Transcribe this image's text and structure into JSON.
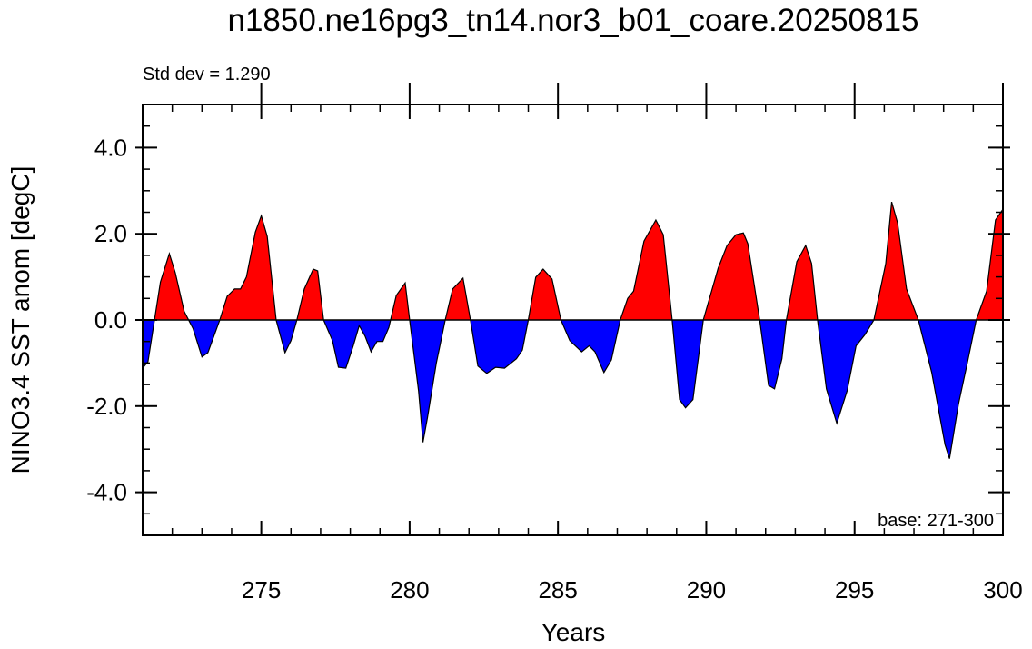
{
  "chart_data": {
    "type": "area",
    "title": "n1850.ne16pg3_tn14.nor3_b01_coare.20250815",
    "annotation_left": "Std dev = 1.290",
    "annotation_right": "base: 271-300",
    "ylabel": "NINO3.4 SST anom [degC]",
    "xlabel": "Years",
    "above_color": "#ff0000",
    "below_color": "#0000ff",
    "xlim": [
      271,
      300
    ],
    "ylim": [
      -5,
      5
    ],
    "xticks": [
      275,
      280,
      285,
      290,
      295,
      300
    ],
    "yticks": [
      {
        "value": -4,
        "label": "-4.0"
      },
      {
        "value": -2,
        "label": "-2.0"
      },
      {
        "value": 0,
        "label": "0.0"
      },
      {
        "value": 2,
        "label": "2.0"
      },
      {
        "value": 4,
        "label": "4.0"
      }
    ],
    "x": [
      271.0,
      271.18,
      271.4,
      271.6,
      271.9,
      272.1,
      272.4,
      272.7,
      273.0,
      273.2,
      273.4,
      273.6,
      273.85,
      274.1,
      274.3,
      274.5,
      274.8,
      275.0,
      275.2,
      275.5,
      275.8,
      276.0,
      276.2,
      276.45,
      276.75,
      276.9,
      277.1,
      277.4,
      277.6,
      277.85,
      278.1,
      278.3,
      278.5,
      278.7,
      278.9,
      279.1,
      279.3,
      279.55,
      279.85,
      280.0,
      280.3,
      280.45,
      280.6,
      280.9,
      281.2,
      281.45,
      281.8,
      282.05,
      282.3,
      282.6,
      282.9,
      283.2,
      283.6,
      283.8,
      284.0,
      284.25,
      284.5,
      284.8,
      285.1,
      285.4,
      285.8,
      286.05,
      286.25,
      286.55,
      286.8,
      287.1,
      287.35,
      287.55,
      287.9,
      288.3,
      288.55,
      288.85,
      289.1,
      289.3,
      289.55,
      289.9,
      290.4,
      290.7,
      291.0,
      291.25,
      291.4,
      291.8,
      292.1,
      292.3,
      292.55,
      292.7,
      293.05,
      293.35,
      293.55,
      293.75,
      294.05,
      294.4,
      294.75,
      295.05,
      295.35,
      295.65,
      296.05,
      296.25,
      296.45,
      296.75,
      297.15,
      297.6,
      298.05,
      298.2,
      298.5,
      298.8,
      299.1,
      299.45,
      299.75,
      300.0
    ],
    "values": [
      -1.12,
      -0.97,
      0,
      0.88,
      1.54,
      1.1,
      0.2,
      -0.2,
      -0.86,
      -0.76,
      -0.38,
      0,
      0.55,
      0.72,
      0.72,
      1.0,
      2.04,
      2.42,
      1.94,
      0,
      -0.76,
      -0.48,
      0,
      0.72,
      1.18,
      1.14,
      0,
      -0.48,
      -1.1,
      -1.12,
      -0.6,
      -0.13,
      -0.38,
      -0.74,
      -0.5,
      -0.5,
      -0.17,
      0.57,
      0.86,
      0,
      -1.64,
      -2.84,
      -2.27,
      -1.0,
      0,
      0.72,
      0.97,
      0,
      -1.07,
      -1.24,
      -1.1,
      -1.12,
      -0.9,
      -0.7,
      0,
      0.99,
      1.18,
      0.95,
      0,
      -0.48,
      -0.74,
      -0.6,
      -0.74,
      -1.22,
      -0.93,
      0,
      0.5,
      0.67,
      1.83,
      2.32,
      1.98,
      0,
      -1.85,
      -2.04,
      -1.85,
      0,
      1.2,
      1.73,
      1.98,
      2.02,
      1.77,
      0,
      -1.52,
      -1.6,
      -0.9,
      0,
      1.35,
      1.73,
      1.31,
      0,
      -1.6,
      -2.4,
      -1.64,
      -0.6,
      -0.34,
      0,
      1.31,
      2.74,
      2.25,
      0.72,
      0,
      -1.22,
      -2.9,
      -3.22,
      -1.96,
      -1.0,
      0,
      0.67,
      2.32,
      2.57
    ]
  }
}
